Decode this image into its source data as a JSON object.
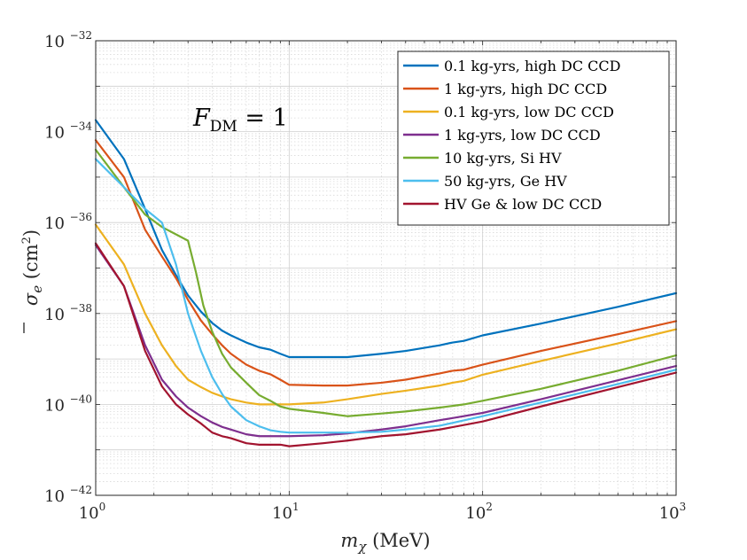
{
  "chart_data": {
    "type": "line",
    "title": "",
    "annotation": {
      "prefix": "F",
      "subscript": "DM",
      "suffix": " = 1"
    },
    "xlabel": {
      "symbol": "m",
      "subscript": "χ",
      "unit": " (MeV)"
    },
    "ylabel": {
      "text": "σ",
      "subscript": "e",
      "unit_open": " (cm",
      "unit_exp": "2",
      "unit_close": ")"
    },
    "xscale": "log",
    "yscale": "log",
    "xlim": [
      1,
      1000
    ],
    "ylim": [
      1e-42,
      1e-32
    ],
    "x_ticks": [
      {
        "value": 1,
        "base": "10",
        "exp": "0"
      },
      {
        "value": 10,
        "base": "10",
        "exp": "1"
      },
      {
        "value": 100,
        "base": "10",
        "exp": "2"
      },
      {
        "value": 1000,
        "base": "10",
        "exp": "3"
      }
    ],
    "y_ticks": [
      {
        "value": 1e-42,
        "base": "10",
        "exp": "−42"
      },
      {
        "value": 1e-40,
        "base": "10",
        "exp": "−40"
      },
      {
        "value": 1e-38,
        "base": "10",
        "exp": "−38"
      },
      {
        "value": 1e-36,
        "base": "10",
        "exp": "−36"
      },
      {
        "value": 1e-34,
        "base": "10",
        "exp": "−34"
      },
      {
        "value": 1e-32,
        "base": "10",
        "exp": "−32"
      }
    ],
    "grid": true,
    "legend_position": "top-right",
    "series": [
      {
        "name": "0.1 kg-yrs, high DC CCD",
        "color": "#0072BD",
        "points": [
          [
            1,
            1.8e-34
          ],
          [
            1.4,
            2.5e-35
          ],
          [
            1.8,
            2e-36
          ],
          [
            2.2,
            2.5e-37
          ],
          [
            2.6,
            7e-38
          ],
          [
            3,
            2.5e-38
          ],
          [
            3.5,
            1.1e-38
          ],
          [
            4,
            6.2e-39
          ],
          [
            4.5,
            4.2e-39
          ],
          [
            5,
            3.3e-39
          ],
          [
            6,
            2.3e-39
          ],
          [
            7,
            1.8e-39
          ],
          [
            8,
            1.6e-39
          ],
          [
            9,
            1.3e-39
          ],
          [
            10,
            1.1e-39
          ],
          [
            15,
            1.1e-39
          ],
          [
            20,
            1.1e-39
          ],
          [
            30,
            1.3e-39
          ],
          [
            40,
            1.5e-39
          ],
          [
            60,
            2e-39
          ],
          [
            70,
            2.3e-39
          ],
          [
            80,
            2.5e-39
          ],
          [
            100,
            3.3e-39
          ],
          [
            200,
            6e-39
          ],
          [
            500,
            1.4e-38
          ],
          [
            1000,
            2.8e-38
          ]
        ]
      },
      {
        "name": "1 kg-yrs, high DC CCD",
        "color": "#D95319",
        "points": [
          [
            1,
            6.5e-35
          ],
          [
            1.4,
            1e-35
          ],
          [
            1.8,
            7e-37
          ],
          [
            2.2,
            1.8e-37
          ],
          [
            2.6,
            6e-38
          ],
          [
            3,
            2e-38
          ],
          [
            3.5,
            7e-39
          ],
          [
            4,
            3.5e-39
          ],
          [
            4.5,
            2e-39
          ],
          [
            5,
            1.3e-39
          ],
          [
            6,
            7.5e-40
          ],
          [
            7,
            5.5e-40
          ],
          [
            8,
            4.6e-40
          ],
          [
            9,
            3.5e-40
          ],
          [
            10,
            2.7e-40
          ],
          [
            15,
            2.6e-40
          ],
          [
            20,
            2.6e-40
          ],
          [
            30,
            3e-40
          ],
          [
            40,
            3.5e-40
          ],
          [
            60,
            4.8e-40
          ],
          [
            70,
            5.5e-40
          ],
          [
            80,
            5.8e-40
          ],
          [
            100,
            7.5e-40
          ],
          [
            200,
            1.5e-39
          ],
          [
            500,
            3.5e-39
          ],
          [
            1000,
            6.8e-39
          ]
        ]
      },
      {
        "name": "0.1 kg-yrs, low DC CCD",
        "color": "#EDB120",
        "points": [
          [
            1,
            9e-37
          ],
          [
            1.4,
            1.2e-37
          ],
          [
            1.8,
            1e-38
          ],
          [
            2.2,
            2e-39
          ],
          [
            2.6,
            7e-40
          ],
          [
            3,
            3.5e-40
          ],
          [
            3.5,
            2.4e-40
          ],
          [
            4,
            1.8e-40
          ],
          [
            4.5,
            1.5e-40
          ],
          [
            5,
            1.3e-40
          ],
          [
            6,
            1.1e-40
          ],
          [
            7,
            1e-40
          ],
          [
            10,
            1e-40
          ],
          [
            15,
            1.1e-40
          ],
          [
            20,
            1.3e-40
          ],
          [
            30,
            1.7e-40
          ],
          [
            40,
            2e-40
          ],
          [
            60,
            2.6e-40
          ],
          [
            70,
            3e-40
          ],
          [
            80,
            3.3e-40
          ],
          [
            100,
            4.5e-40
          ],
          [
            200,
            9e-40
          ],
          [
            500,
            2.2e-39
          ],
          [
            1000,
            4.5e-39
          ]
        ]
      },
      {
        "name": "1 kg-yrs, low DC CCD",
        "color": "#7E2F8E",
        "points": [
          [
            1,
            3.2e-37
          ],
          [
            1.4,
            4e-38
          ],
          [
            1.8,
            2e-39
          ],
          [
            2.2,
            3.5e-40
          ],
          [
            2.6,
            1.5e-40
          ],
          [
            3,
            8.5e-41
          ],
          [
            3.5,
            5.5e-41
          ],
          [
            4,
            4e-41
          ],
          [
            4.5,
            3.2e-41
          ],
          [
            5,
            2.8e-41
          ],
          [
            6,
            2.2e-41
          ],
          [
            7,
            2e-41
          ],
          [
            8,
            2e-41
          ],
          [
            10,
            2e-41
          ],
          [
            15,
            2.1e-41
          ],
          [
            20,
            2.3e-41
          ],
          [
            30,
            2.8e-41
          ],
          [
            40,
            3.3e-41
          ],
          [
            60,
            4.5e-41
          ],
          [
            70,
            5e-41
          ],
          [
            100,
            6.5e-41
          ],
          [
            200,
            1.3e-40
          ],
          [
            500,
            3.4e-40
          ],
          [
            1000,
            7e-40
          ]
        ]
      },
      {
        "name": "10 kg-yrs, Si HV",
        "color": "#77AC30",
        "points": [
          [
            1,
            4e-35
          ],
          [
            1.4,
            6e-36
          ],
          [
            1.8,
            1.5e-36
          ],
          [
            2.2,
            8e-37
          ],
          [
            2.6,
            5.5e-37
          ],
          [
            3,
            4e-37
          ],
          [
            3.3,
            8e-38
          ],
          [
            3.6,
            1.5e-38
          ],
          [
            4,
            4e-39
          ],
          [
            4.5,
            1.3e-39
          ],
          [
            5,
            6.5e-40
          ],
          [
            6,
            3e-40
          ],
          [
            7,
            1.6e-40
          ],
          [
            8,
            1.2e-40
          ],
          [
            9,
            9e-41
          ],
          [
            10,
            8e-41
          ],
          [
            15,
            6.5e-41
          ],
          [
            20,
            5.5e-41
          ],
          [
            30,
            6.3e-41
          ],
          [
            40,
            7e-41
          ],
          [
            60,
            8.5e-41
          ],
          [
            80,
            1e-40
          ],
          [
            100,
            1.2e-40
          ],
          [
            200,
            2.2e-40
          ],
          [
            500,
            5.5e-40
          ],
          [
            1000,
            1.2e-39
          ]
        ]
      },
      {
        "name": "50 kg-yrs, Ge HV",
        "color": "#4DBEEE",
        "points": [
          [
            1,
            2.5e-35
          ],
          [
            1.4,
            6e-36
          ],
          [
            1.8,
            2e-36
          ],
          [
            2.2,
            1e-36
          ],
          [
            2.6,
            1.2e-37
          ],
          [
            3,
            1e-38
          ],
          [
            3.5,
            1.5e-39
          ],
          [
            4,
            4e-40
          ],
          [
            4.5,
            1.7e-40
          ],
          [
            5,
            9e-41
          ],
          [
            6,
            4.5e-41
          ],
          [
            7,
            3.3e-41
          ],
          [
            8,
            2.7e-41
          ],
          [
            9,
            2.5e-41
          ],
          [
            10,
            2.4e-41
          ],
          [
            15,
            2.4e-41
          ],
          [
            20,
            2.4e-41
          ],
          [
            30,
            2.5e-41
          ],
          [
            40,
            2.8e-41
          ],
          [
            60,
            3.4e-41
          ],
          [
            100,
            5.5e-41
          ],
          [
            200,
            1.1e-40
          ],
          [
            500,
            2.8e-40
          ],
          [
            1000,
            5.8e-40
          ]
        ]
      },
      {
        "name": "HV Ge & low DC CCD",
        "color": "#A2142F",
        "points": [
          [
            1,
            3.5e-37
          ],
          [
            1.4,
            4e-38
          ],
          [
            1.8,
            1.5e-39
          ],
          [
            2.2,
            2.5e-40
          ],
          [
            2.6,
            1e-40
          ],
          [
            3,
            6e-41
          ],
          [
            3.5,
            3.8e-41
          ],
          [
            4,
            2.4e-41
          ],
          [
            4.5,
            2e-41
          ],
          [
            5,
            1.8e-41
          ],
          [
            6,
            1.4e-41
          ],
          [
            7,
            1.3e-41
          ],
          [
            9,
            1.3e-41
          ],
          [
            10,
            1.2e-41
          ],
          [
            15,
            1.4e-41
          ],
          [
            20,
            1.6e-41
          ],
          [
            30,
            2e-41
          ],
          [
            40,
            2.2e-41
          ],
          [
            60,
            2.8e-41
          ],
          [
            100,
            4.2e-41
          ],
          [
            200,
            9e-41
          ],
          [
            500,
            2.4e-40
          ],
          [
            1000,
            5e-40
          ]
        ]
      }
    ]
  }
}
